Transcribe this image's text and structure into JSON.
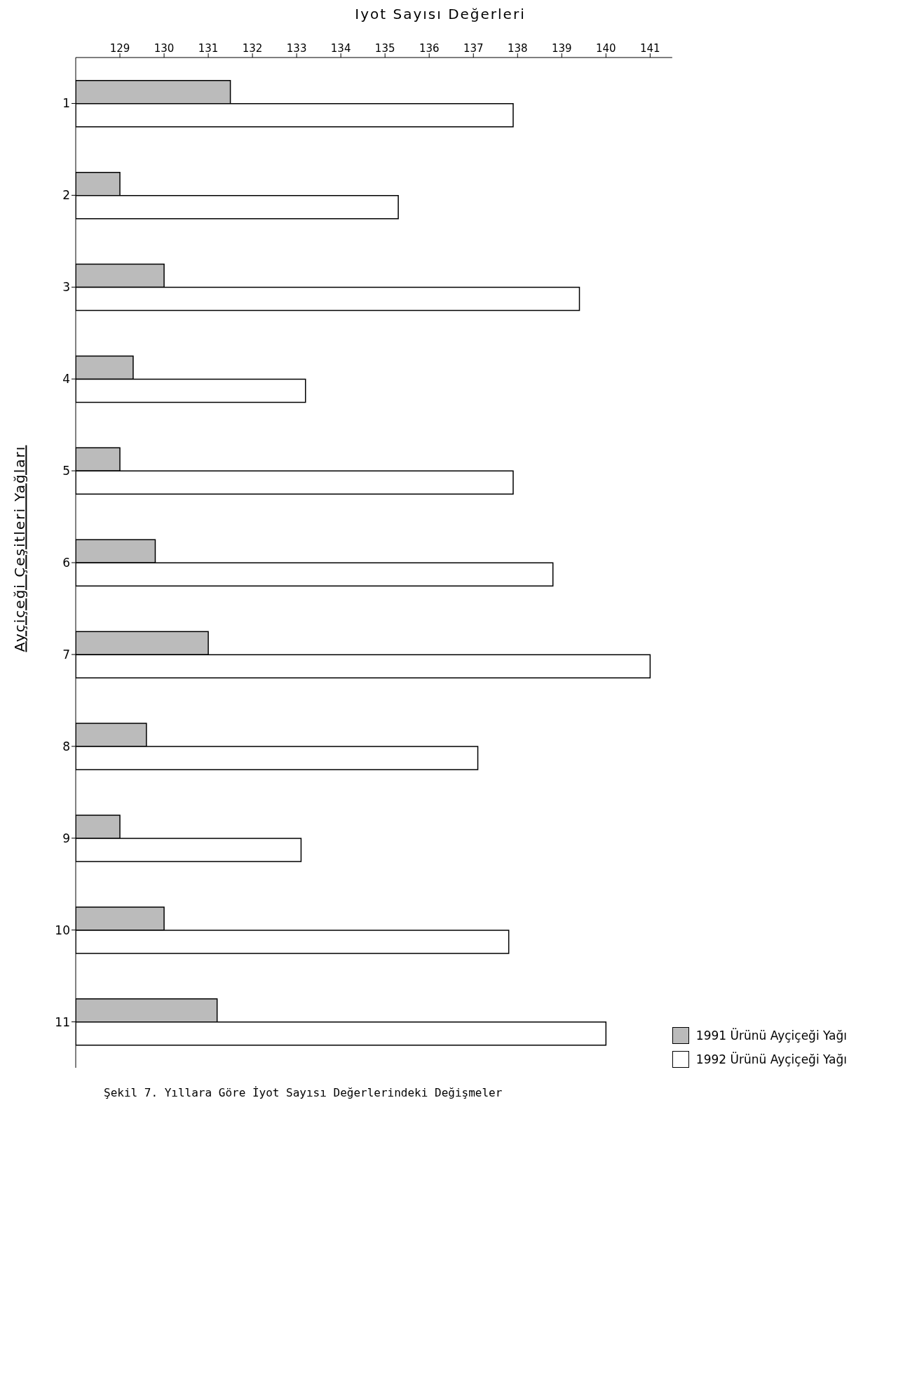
{
  "chart_data": {
    "type": "bar",
    "orientation": "horizontal",
    "xlabel": "Iyot Sayısı Değerleri",
    "ylabel": "Ayçiçeği Çeşitleri Yağları",
    "categories": [
      "1",
      "2",
      "3",
      "4",
      "5",
      "6",
      "7",
      "8",
      "9",
      "10",
      "11"
    ],
    "series": [
      {
        "name": "1991 Ürünü Ayçiçeği Yağı",
        "color": "#bbbbbb",
        "values": [
          131.5,
          129.0,
          130.0,
          129.3,
          129.0,
          129.8,
          131.0,
          129.6,
          129.0,
          130.0,
          131.2
        ]
      },
      {
        "name": "1992 Ürünü Ayçiçeği Yağı",
        "color": "#ffffff",
        "values": [
          137.9,
          135.3,
          139.4,
          133.2,
          137.9,
          138.8,
          141.0,
          137.1,
          133.1,
          137.8,
          140.0
        ]
      }
    ],
    "xlim": [
      128,
      141.5
    ],
    "xticks": [
      129,
      130,
      131,
      132,
      133,
      134,
      135,
      136,
      137,
      138,
      139,
      140,
      141
    ],
    "grid": false,
    "legend": "bottom right",
    "annotations": [
      "Şekil 7. Yıllara Göre İyot Sayısı Değerlerindeki Değişmeler"
    ]
  }
}
